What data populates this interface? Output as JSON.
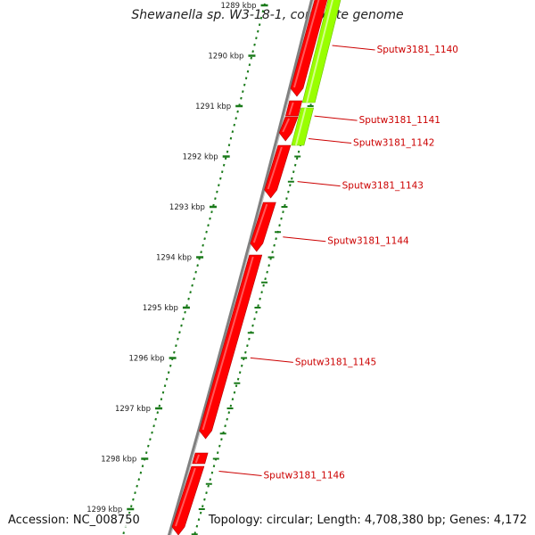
{
  "title": "Shewanella sp. W3-18-1, complete genome",
  "footer": {
    "accession": "Accession: NC_008750",
    "topology": "Topology: circular; Length: 4,708,380 bp; Genes: 4,172"
  },
  "colors": {
    "forward_gene": "#ff0000",
    "highlight_gene": "#99ff00",
    "backbone": "#808080",
    "tick": "#1a7a1a",
    "label": "#cc0000",
    "leader": "#cc0000"
  },
  "scale": {
    "ticks": [
      {
        "label": "1289 kbp",
        "value": 1289
      },
      {
        "label": "1290 kbp",
        "value": 1290
      },
      {
        "label": "1291 kbp",
        "value": 1291
      },
      {
        "label": "1292 kbp",
        "value": 1292
      },
      {
        "label": "1293 kbp",
        "value": 1293
      },
      {
        "label": "1294 kbp",
        "value": 1294
      },
      {
        "label": "1295 kbp",
        "value": 1295
      },
      {
        "label": "1296 kbp",
        "value": 1296
      },
      {
        "label": "1297 kbp",
        "value": 1297
      },
      {
        "label": "1298 kbp",
        "value": 1298
      },
      {
        "label": "1299 kbp",
        "value": 1299
      }
    ]
  },
  "genes": [
    {
      "name": "Sputw3181_1140",
      "track": "forward",
      "label_kbp": 1289.85
    },
    {
      "name": "Sputw3181_1141",
      "track": "forward",
      "label_kbp": 1291.25
    },
    {
      "name": "Sputw3181_1142",
      "track": "forward",
      "label_kbp": 1291.7
    },
    {
      "name": "Sputw3181_1143",
      "track": "forward",
      "label_kbp": 1292.55
    },
    {
      "name": "Sputw3181_1144",
      "track": "forward",
      "label_kbp": 1293.65
    },
    {
      "name": "Sputw3181_1145",
      "track": "forward",
      "label_kbp": 1296.05
    },
    {
      "name": "Sputw3181_1146",
      "track": "forward",
      "label_kbp": 1298.3
    }
  ]
}
